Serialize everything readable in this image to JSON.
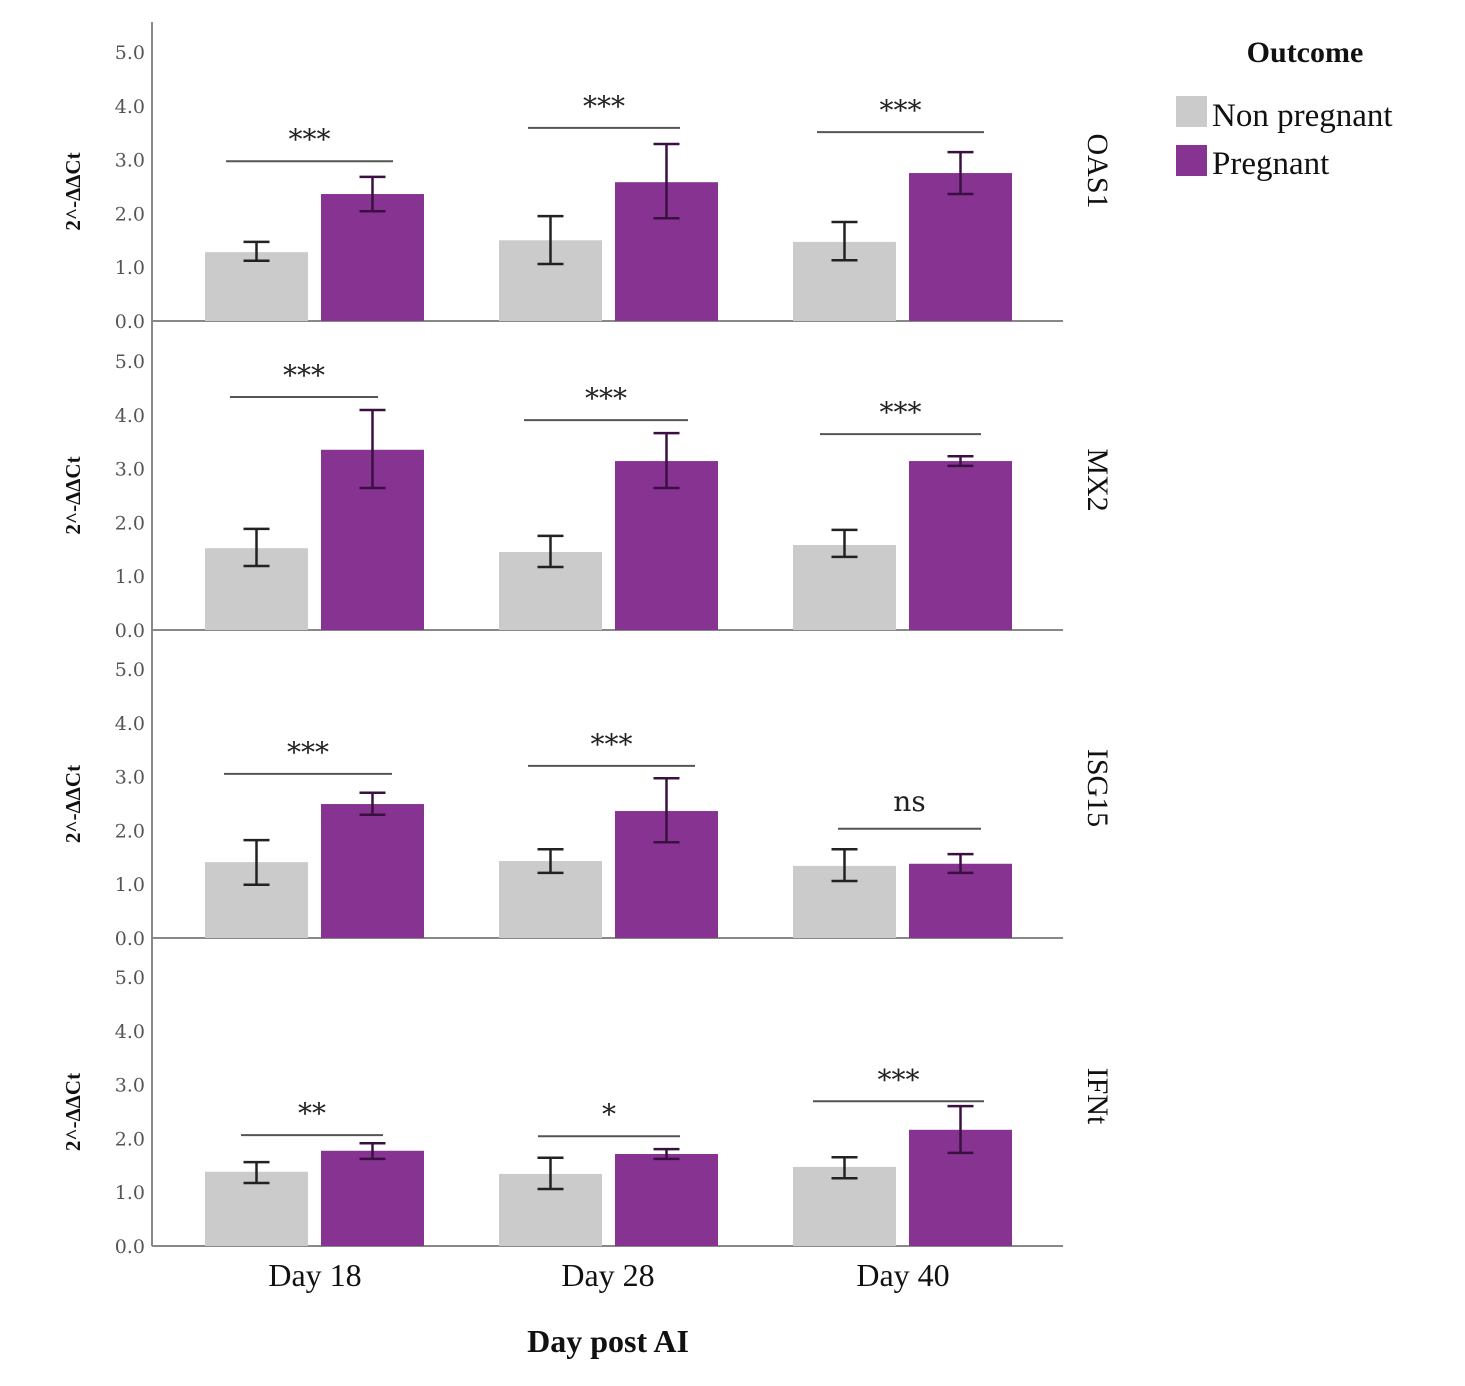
{
  "chart_data": {
    "type": "bar",
    "title": "",
    "xlabel": "Day post AI",
    "ylabel": "2^-ΔΔCt",
    "ylim": [
      0,
      5
    ],
    "yticks": [
      "0.0",
      "1.0",
      "2.0",
      "3.0",
      "4.0",
      "5.0"
    ],
    "categories": [
      "Day 18",
      "Day 28",
      "Day 40"
    ],
    "legend": {
      "title": "Outcome",
      "placement": "top-right",
      "entries": [
        "Non pregnant",
        "Pregnant"
      ]
    },
    "colors": {
      "Non pregnant": "#cbcbcb",
      "Pregnant": "#863392"
    },
    "panels": [
      {
        "gene": "OAS1",
        "series": [
          {
            "name": "Non pregnant",
            "values": [
              1.28,
              1.5,
              1.47
            ],
            "err_low": [
              1.12,
              1.06,
              1.13
            ],
            "err_high": [
              1.47,
              1.95,
              1.84
            ]
          },
          {
            "name": "Pregnant",
            "values": [
              2.36,
              2.58,
              2.75
            ],
            "err_low": [
              2.04,
              1.91,
              2.36
            ],
            "err_high": [
              2.68,
              3.29,
              3.14
            ]
          }
        ],
        "significance": [
          {
            "label": "***",
            "level": 2.97
          },
          {
            "label": "***",
            "level": 3.59
          },
          {
            "label": "***",
            "level": 3.51
          }
        ]
      },
      {
        "gene": "MX2",
        "series": [
          {
            "name": "Non pregnant",
            "values": [
              1.52,
              1.45,
              1.58
            ],
            "err_low": [
              1.19,
              1.17,
              1.36
            ],
            "err_high": [
              1.88,
              1.75,
              1.86
            ]
          },
          {
            "name": "Pregnant",
            "values": [
              3.35,
              3.14,
              3.14
            ],
            "err_low": [
              2.64,
              2.64,
              3.05
            ],
            "err_high": [
              4.09,
              3.66,
              3.23
            ]
          }
        ],
        "significance": [
          {
            "label": "***",
            "level": 4.33
          },
          {
            "label": "***",
            "level": 3.9
          },
          {
            "label": "***",
            "level": 3.64
          }
        ]
      },
      {
        "gene": "ISG15",
        "series": [
          {
            "name": "Non pregnant",
            "values": [
              1.41,
              1.43,
              1.34
            ],
            "err_low": [
              0.99,
              1.21,
              1.06
            ],
            "err_high": [
              1.82,
              1.65,
              1.65
            ]
          },
          {
            "name": "Pregnant",
            "values": [
              2.49,
              2.36,
              1.38
            ],
            "err_low": [
              2.29,
              1.78,
              1.21
            ],
            "err_high": [
              2.7,
              2.97,
              1.56
            ]
          }
        ],
        "significance": [
          {
            "label": "***",
            "level": 3.05
          },
          {
            "label": "***",
            "level": 3.2
          },
          {
            "label": "ns",
            "level": 2.03
          }
        ]
      },
      {
        "gene": "IFNt",
        "series": [
          {
            "name": "Non pregnant",
            "values": [
              1.38,
              1.34,
              1.47
            ],
            "err_low": [
              1.17,
              1.06,
              1.26
            ],
            "err_high": [
              1.56,
              1.64,
              1.65
            ]
          },
          {
            "name": "Pregnant",
            "values": [
              1.77,
              1.71,
              2.16
            ],
            "err_low": [
              1.62,
              1.62,
              1.73
            ],
            "err_high": [
              1.91,
              1.8,
              2.6
            ]
          }
        ],
        "significance": [
          {
            "label": "**",
            "level": 2.06
          },
          {
            "label": "*",
            "level": 2.04
          },
          {
            "label": "***",
            "level": 2.69
          }
        ]
      }
    ]
  }
}
